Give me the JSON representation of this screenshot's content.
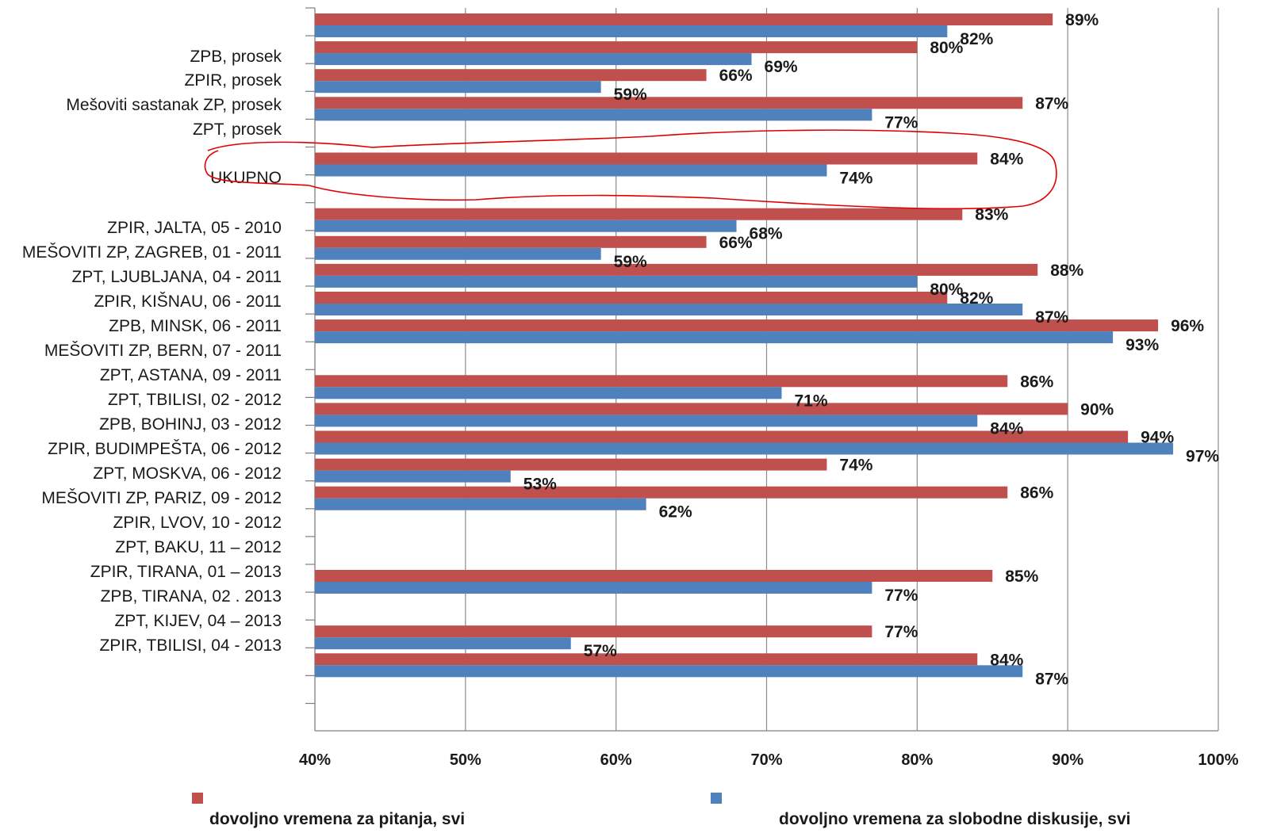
{
  "chart_data": {
    "type": "bar",
    "orientation": "horizontal",
    "xlim": [
      0.4,
      1.0
    ],
    "x_ticks": [
      "40%",
      "50%",
      "60%",
      "70%",
      "80%",
      "90%",
      "100%"
    ],
    "grid": "vertical",
    "legend_position": "bottom",
    "categories": [
      "",
      "ZPB, prosek",
      "ZPIR, prosek",
      "Mešoviti sastanak ZP, prosek",
      "ZPT, prosek",
      "UKUPNO",
      "ZPIR, JALTA, 05 - 2010",
      "MEŠOVITI ZP, ZAGREB, 01 - 2011",
      "ZPT, LJUBLJANA,  04 - 2011",
      "ZPIR, KIŠNAU, 06 - 2011",
      "ZPB, MINSK, 06 - 2011",
      "MEŠOVITI ZP, BERN, 07 - 2011",
      "ZPT, ASTANA, 09 - 2011",
      "ZPT, TBILISI, 02 - 2012",
      "ZPB, BOHINJ, 03 - 2012",
      "ZPIR, BUDIMPEŠTA, 06 - 2012",
      "ZPT, MOSKVA, 06 - 2012",
      "MEŠOVITI ZP, PARIZ, 09 - 2012",
      "ZPIR, LVOV, 10 - 2012",
      "ZPT, BAKU, 11 – 2012",
      "ZPIR, TIRANA, 01 – 2013",
      "ZPB, TIRANA,  02 . 2013",
      "ZPT, KIJEV, 04 – 2013",
      "ZPIR, TBILISI, 04 - 2013"
    ],
    "series": [
      {
        "name": "dovoljno vremena za pitanja, svi",
        "color": "#c0504d",
        "values": [
          0.89,
          0.8,
          0.66,
          0.87,
          null,
          0.84,
          null,
          0.83,
          0.66,
          0.88,
          0.82,
          0.96,
          null,
          0.86,
          0.9,
          0.94,
          0.74,
          0.86,
          null,
          null,
          0.85,
          null,
          0.77,
          0.84
        ],
        "labels": [
          "89%",
          "80%",
          "66%",
          "87%",
          "",
          "84%",
          "",
          "83%",
          "66%",
          "88%",
          "82%",
          "96%",
          "",
          "86%",
          "90%",
          "94%",
          "74%",
          "86%",
          "",
          "",
          "85%",
          "",
          "77%",
          "84%"
        ]
      },
      {
        "name": "dovoljno vremena za slobodne diskusije, svi",
        "color": "#4f81bd",
        "values": [
          0.82,
          0.69,
          0.59,
          0.77,
          null,
          0.74,
          null,
          0.68,
          0.59,
          0.8,
          0.87,
          0.93,
          null,
          0.71,
          0.84,
          0.97,
          0.53,
          0.62,
          null,
          null,
          0.77,
          null,
          0.57,
          0.87
        ],
        "labels": [
          "82%",
          "69%",
          "59%",
          "77%",
          "",
          "74%",
          "",
          "68%",
          "59%",
          "80%",
          "87%",
          "93%",
          "",
          "71%",
          "84%",
          "97%",
          "53%",
          "62%",
          "",
          "",
          "77%",
          "",
          "57%",
          "87%"
        ]
      }
    ],
    "annotation": "red hand-drawn ellipse around UKUPNO row"
  }
}
